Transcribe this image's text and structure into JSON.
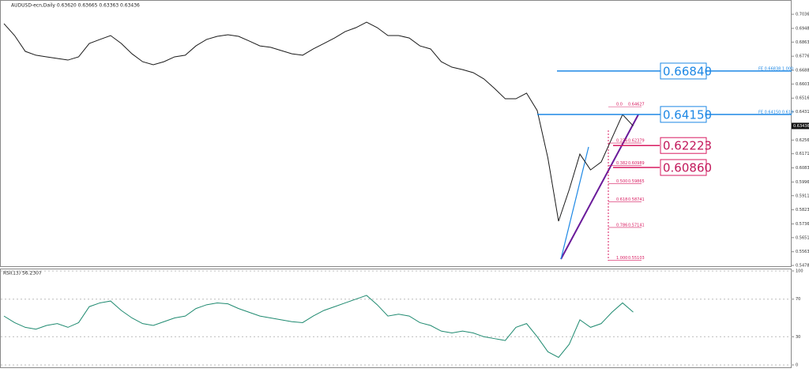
{
  "header": {
    "title": "AUDUSD-ecn,Daily  0.63620 0.63665 0.63363 0.63436"
  },
  "chart_data": [
    {
      "type": "line",
      "title": "",
      "series": [
        {
          "name": "AUDUSD close",
          "color": "#1a1a1a",
          "values": [
            0.6978,
            0.6904,
            0.6806,
            0.6782,
            0.6772,
            0.6762,
            0.6752,
            0.6772,
            0.6855,
            0.688,
            0.6904,
            0.6855,
            0.6791,
            0.6742,
            0.6723,
            0.6742,
            0.6772,
            0.6782,
            0.684,
            0.688,
            0.6899,
            0.6909,
            0.6899,
            0.687,
            0.684,
            0.6831,
            0.6811,
            0.6791,
            0.6782,
            0.6821,
            0.6855,
            0.6889,
            0.6929,
            0.6953,
            0.6987,
            0.6953,
            0.6904,
            0.6904,
            0.6889,
            0.684,
            0.6821,
            0.6742,
            0.6708,
            0.6693,
            0.6674,
            0.6635,
            0.6576,
            0.6512,
            0.6512,
            0.6547,
            0.6439,
            0.6145,
            0.5753,
            0.5949,
            0.6169,
            0.6071,
            0.612,
            0.6267,
            0.6414,
            0.63436
          ]
        }
      ],
      "ylim": [
        0.5469,
        0.71
      ],
      "yticks": [
        {
          "value": 0.7036,
          "label": "0.70360"
        },
        {
          "value": 0.69485,
          "label": "0.69485"
        },
        {
          "value": 0.68635,
          "label": "0.68635"
        },
        {
          "value": 0.6776,
          "label": "0.67760"
        },
        {
          "value": 0.66885,
          "label": "0.66885"
        },
        {
          "value": 0.66035,
          "label": "0.66035"
        },
        {
          "value": 0.6516,
          "label": "0.65160"
        },
        {
          "value": 0.6431,
          "label": "0.64310"
        },
        {
          "value": 0.6256,
          "label": "0.62560"
        },
        {
          "value": 0.6171,
          "label": "0.61710"
        },
        {
          "value": 0.60835,
          "label": "0.60835"
        },
        {
          "value": 0.5996,
          "label": "0.59960"
        },
        {
          "value": 0.5911,
          "label": "0.59110"
        },
        {
          "value": 0.58235,
          "label": "0.58235"
        },
        {
          "value": 0.5736,
          "label": "0.57360"
        },
        {
          "value": 0.5651,
          "label": "0.56510"
        },
        {
          "value": 0.55635,
          "label": "0.55635"
        },
        {
          "value": 0.54785,
          "label": "0.54785"
        }
      ],
      "last_price": {
        "value": 0.63436,
        "label": "0.63436"
      },
      "levels": [
        {
          "value": 0.6684,
          "label": "0.66840",
          "color": "#1e88e5"
        },
        {
          "value": 0.6415,
          "label": "0.64150",
          "color": "#1e88e5"
        },
        {
          "value": 0.62223,
          "label": "0.62223",
          "color": "#d81b60"
        },
        {
          "value": 0.6086,
          "label": "0.60860",
          "color": "#d81b60"
        }
      ],
      "expansion": [
        {
          "value": 0.66838,
          "label": "FE 0.66838 1.000"
        },
        {
          "value": 0.6415,
          "label": "FE 0.64150 0.618"
        }
      ],
      "fibonacci": [
        {
          "ratio": "0.0",
          "value": 0.64627,
          "label": "0.64627"
        },
        {
          "ratio": "0.236",
          "value": 0.62379,
          "label": "0.62379"
        },
        {
          "ratio": "0.382",
          "value": 0.60989,
          "label": "0.60989"
        },
        {
          "ratio": "0.500",
          "value": 0.59865,
          "label": "0.59865"
        },
        {
          "ratio": "0.618",
          "value": 0.58741,
          "label": "0.58741"
        },
        {
          "ratio": "0.786",
          "value": 0.57141,
          "label": "0.57141"
        },
        {
          "ratio": "1.000",
          "value": 0.55103,
          "label": "0.55103"
        }
      ]
    },
    {
      "type": "line",
      "title": "RSI(13) 56.2307",
      "series": [
        {
          "name": "RSI",
          "color": "#1f8a70",
          "values": [
            52,
            45,
            40,
            38,
            42,
            44,
            40,
            45,
            62,
            66,
            68,
            58,
            50,
            44,
            42,
            46,
            50,
            52,
            60,
            64,
            66,
            65,
            60,
            56,
            52,
            50,
            48,
            46,
            45,
            52,
            58,
            62,
            66,
            70,
            74,
            64,
            52,
            54,
            52,
            45,
            42,
            36,
            34,
            36,
            34,
            30,
            28,
            26,
            40,
            44,
            30,
            14,
            8,
            22,
            48,
            40,
            44,
            56,
            66,
            56.2307
          ]
        }
      ],
      "ylim": [
        0,
        100
      ],
      "yticks": [
        100,
        70,
        30,
        0
      ]
    }
  ]
}
